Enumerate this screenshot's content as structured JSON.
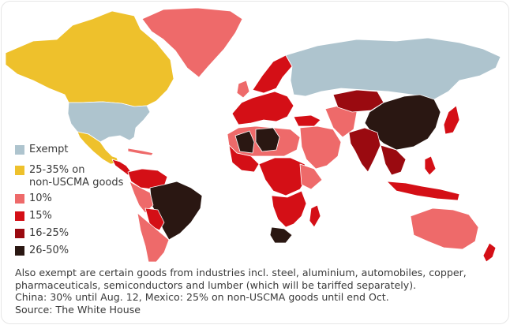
{
  "legend": {
    "items": [
      {
        "label": "Exempt",
        "color": "#aec4ce"
      },
      {
        "label": "25-35% on\nnon-USCMA goods",
        "color": "#eec12c"
      },
      {
        "label": "10%",
        "color": "#ee6a6a"
      },
      {
        "label": "15%",
        "color": "#d40f16"
      },
      {
        "label": "16-25%",
        "color": "#9a0a10"
      },
      {
        "label": "26-50%",
        "color": "#2a1712"
      }
    ]
  },
  "notes": {
    "line1": "Also exempt are certain goods from industries incl. steel, aluminium, automobiles, copper,",
    "line2": "pharmaceuticals, semiconductors and lumber (which will be tariffed separately).",
    "line3": "China: 30% until Aug. 12, Mexico: 25% on non-USCMA goods until end Oct.",
    "source": "Source: The White House"
  },
  "colors": {
    "exempt": "#aec4ce",
    "usmca": "#eec12c",
    "ten": "#ee6a6a",
    "fifteen": "#d40f16",
    "sixteen_25": "#9a0a10",
    "high": "#2a1712",
    "border": "#ffffff"
  }
}
